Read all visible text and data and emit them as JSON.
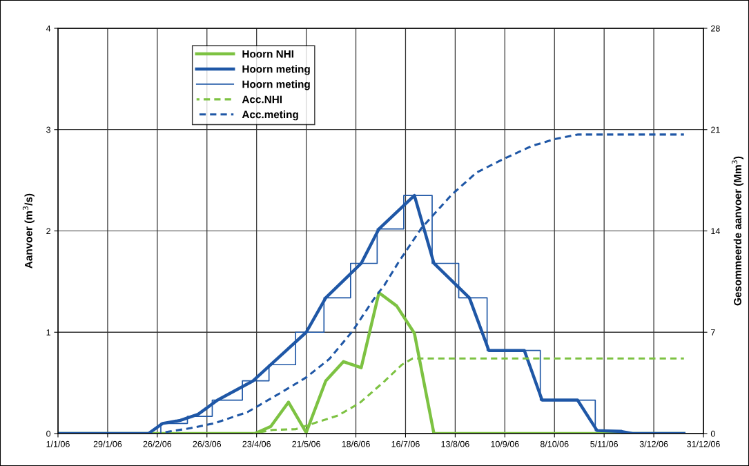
{
  "chart_data": {
    "type": "line",
    "ylabel": "Aanvoer (m$^{3}$/s)",
    "y2label": "Gesommeerde aanvoer (Mm$^{3}$)",
    "xlim": [
      "2006-01-01",
      "2006-12-31"
    ],
    "xticks": [
      {
        "value": "2006-01-01",
        "label": "1/1/06"
      },
      {
        "value": "2006-01-29",
        "label": "29/1/06"
      },
      {
        "value": "2006-02-26",
        "label": "26/2/06"
      },
      {
        "value": "2006-03-26",
        "label": "26/3/06"
      },
      {
        "value": "2006-04-23",
        "label": "23/4/06"
      },
      {
        "value": "2006-05-21",
        "label": "21/5/06"
      },
      {
        "value": "2006-06-18",
        "label": "18/6/06"
      },
      {
        "value": "2006-07-16",
        "label": "16/7/06"
      },
      {
        "value": "2006-08-13",
        "label": "13/8/06"
      },
      {
        "value": "2006-09-10",
        "label": "10/9/06"
      },
      {
        "value": "2006-10-08",
        "label": "8/10/06"
      },
      {
        "value": "2006-11-05",
        "label": "5/11/06"
      },
      {
        "value": "2006-12-03",
        "label": "3/12/06"
      },
      {
        "value": "2006-12-31",
        "label": "31/12/06"
      }
    ],
    "ylim": [
      0,
      4
    ],
    "yticks": [
      0,
      1,
      2,
      3,
      4
    ],
    "y2lim": [
      0,
      28
    ],
    "y2ticks": [
      0,
      7,
      14,
      21,
      28
    ],
    "grid": true,
    "legend": "top left",
    "series": [
      {
        "name": "Hoorn NHI",
        "color": "#7dc242",
        "line_style": "solid",
        "x": [
          "2006-01-01",
          "2006-04-22",
          "2006-05-01",
          "2006-05-11",
          "2006-05-21",
          "2006-06-01",
          "2006-06-11",
          "2006-06-21",
          "2006-07-01",
          "2006-07-11",
          "2006-07-21",
          "2006-08-01",
          "2006-12-20"
        ],
        "values": [
          0,
          0,
          0.07,
          0.31,
          0.01,
          0.52,
          0.71,
          0.65,
          1.39,
          1.26,
          0.99,
          0,
          0
        ]
      },
      {
        "name": "Hoorn meting",
        "color": "#1f57a6",
        "line_style": "solid",
        "x": [
          "2006-01-01",
          "2006-02-21",
          "2006-03-01",
          "2006-03-11",
          "2006-03-21",
          "2006-04-01",
          "2006-04-21",
          "2006-05-01",
          "2006-05-21",
          "2006-06-01",
          "2006-06-21",
          "2006-07-01",
          "2006-07-21",
          "2006-08-01",
          "2006-08-21",
          "2006-09-01",
          "2006-09-21",
          "2006-10-01",
          "2006-10-21",
          "2006-11-01",
          "2006-11-15",
          "2006-11-21",
          "2006-12-20"
        ],
        "values": [
          0,
          0,
          0.1,
          0.13,
          0.19,
          0.33,
          0.52,
          0.68,
          1.0,
          1.34,
          1.68,
          2.02,
          2.35,
          1.68,
          1.34,
          0.82,
          0.82,
          0.33,
          0.33,
          0.03,
          0.02,
          0,
          0
        ]
      },
      {
        "name": "Hoorn meting",
        "color": "#1f57a6",
        "type": "step",
        "line_style": "solid",
        "x": [
          "2006-01-01",
          "2006-02-28",
          "2006-03-15",
          "2006-03-29",
          "2006-04-15",
          "2006-04-30",
          "2006-05-15",
          "2006-05-31",
          "2006-06-15",
          "2006-06-30",
          "2006-07-15",
          "2006-07-31",
          "2006-08-15",
          "2006-08-31",
          "2006-09-30",
          "2006-10-31",
          "2006-11-15",
          "2006-12-20"
        ],
        "values": [
          0,
          0.1,
          0.17,
          0.33,
          0.52,
          0.68,
          1.0,
          1.34,
          1.68,
          2.02,
          2.35,
          1.68,
          1.34,
          0.82,
          0.33,
          0.03,
          0,
          0
        ]
      },
      {
        "name": "Acc.NHI",
        "color": "#7dc242",
        "line_style": "dashed",
        "axis": "y2",
        "x": [
          "2006-04-21",
          "2006-05-02",
          "2006-05-15",
          "2006-05-21",
          "2006-06-08",
          "2006-06-20",
          "2006-07-04",
          "2006-07-14",
          "2006-07-20",
          "2006-12-20"
        ],
        "values": [
          0,
          0.25,
          0.3,
          0.54,
          1.25,
          2.1,
          3.6,
          4.76,
          5.19,
          5.19
        ]
      },
      {
        "name": "Acc.meting",
        "color": "#1f57a6",
        "line_style": "dashed",
        "axis": "y2",
        "x": [
          "2006-03-01",
          "2006-03-17",
          "2006-03-30",
          "2006-04-18",
          "2006-05-08",
          "2006-05-21",
          "2006-06-03",
          "2006-06-16",
          "2006-06-29",
          "2006-07-04",
          "2006-07-12",
          "2006-07-25",
          "2006-08-11",
          "2006-08-25",
          "2006-09-08",
          "2006-09-25",
          "2006-10-08",
          "2006-10-21",
          "2006-12-20"
        ],
        "values": [
          0.06,
          0.38,
          0.7,
          1.49,
          2.92,
          3.88,
          5.15,
          7.06,
          9.45,
          10.24,
          11.83,
          14.2,
          16.5,
          18.03,
          18.9,
          19.86,
          20.34,
          20.66,
          20.66
        ]
      }
    ]
  }
}
